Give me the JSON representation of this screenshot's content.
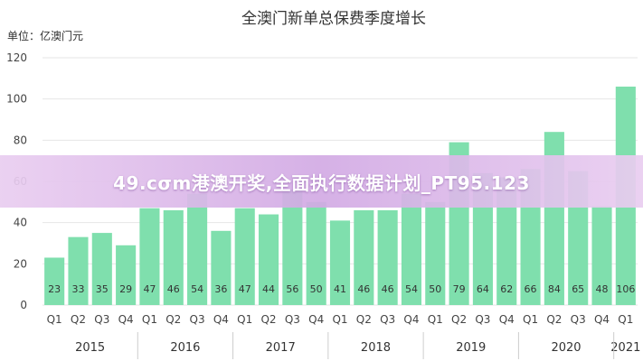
{
  "chart_data": {
    "type": "bar",
    "title": "全澳门新单总保费季度增长",
    "unit_label": "单位：亿澳门元",
    "categories": [
      "Q1",
      "Q2",
      "Q3",
      "Q4",
      "Q1",
      "Q2",
      "Q3",
      "Q4",
      "Q1",
      "Q2",
      "Q3",
      "Q4",
      "Q1",
      "Q2",
      "Q3",
      "Q4",
      "Q1",
      "Q2",
      "Q3",
      "Q4",
      "Q1",
      "Q2",
      "Q3",
      "Q4",
      "Q1"
    ],
    "years": [
      {
        "label": "2015",
        "start": 0,
        "count": 4
      },
      {
        "label": "2016",
        "start": 4,
        "count": 4
      },
      {
        "label": "2017",
        "start": 8,
        "count": 4
      },
      {
        "label": "2018",
        "start": 12,
        "count": 4
      },
      {
        "label": "2019",
        "start": 16,
        "count": 4
      },
      {
        "label": "2020",
        "start": 20,
        "count": 4
      },
      {
        "label": "2021",
        "start": 24,
        "count": 1
      }
    ],
    "values": [
      23,
      33,
      35,
      29,
      47,
      46,
      54,
      36,
      47,
      44,
      56,
      50,
      41,
      46,
      46,
      54,
      50,
      79,
      64,
      62,
      66,
      84,
      65,
      48,
      106
    ],
    "ylim": [
      0,
      120
    ],
    "yticks": [
      0,
      20,
      40,
      60,
      80,
      100,
      120
    ],
    "bar_color": "#7fdfad",
    "grid": true
  },
  "banner": {
    "text": "49.cσm港澳开奖,全面执行数据计划_PT95.123"
  }
}
